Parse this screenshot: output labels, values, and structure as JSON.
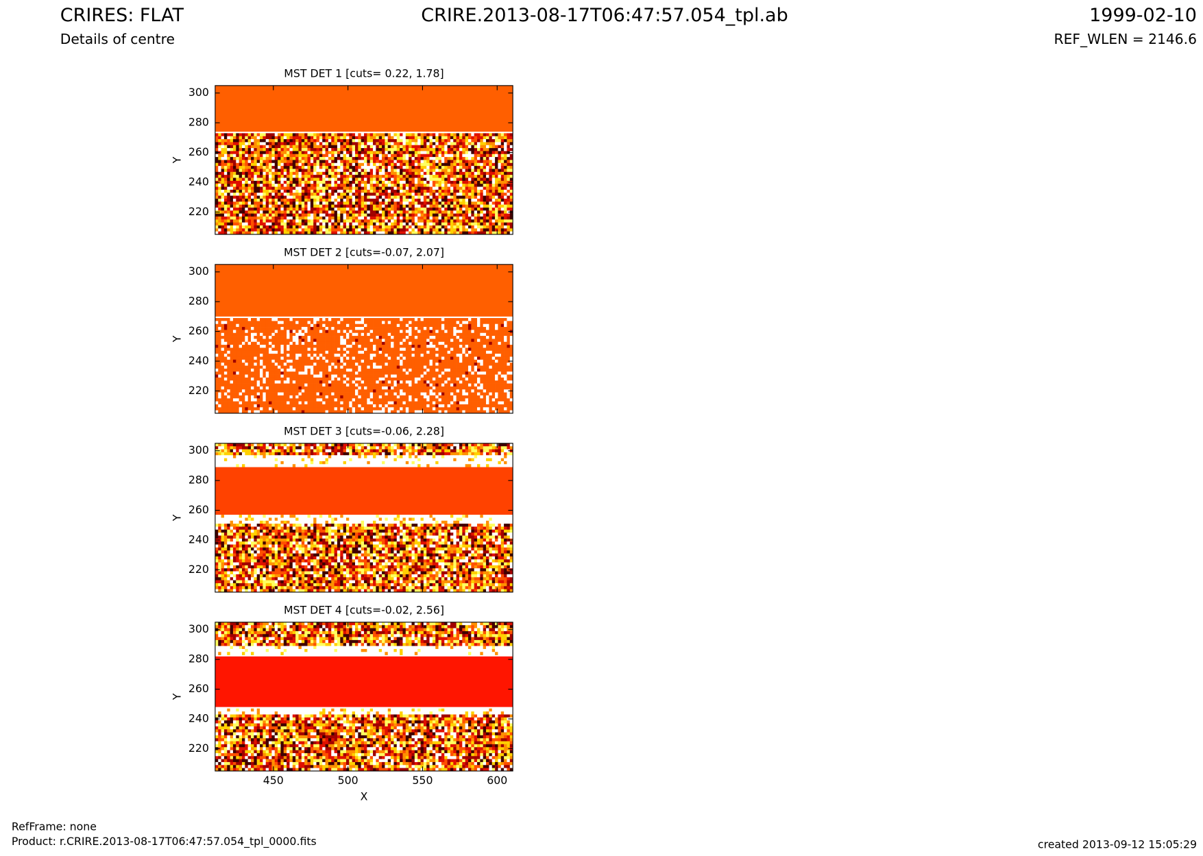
{
  "header": {
    "title": "CRIRES: FLAT",
    "subtitle": "Details of centre",
    "file": "CRIRE.2013-08-17T06:47:57.054_tpl.ab",
    "date": "1999-02-10",
    "ref_wlen": "REF_WLEN = 2146.6"
  },
  "footer": {
    "refframe": "RefFrame: none",
    "product": "Product: r.CRIRE.2013-08-17T06:47:57.054_tpl_0000.fits",
    "created": "created 2013-09-12 15:05:29"
  },
  "chart_data": [
    {
      "type": "image",
      "title": "MST DET 1 [cuts= 0.22, 1.78]",
      "ylabel": "Y",
      "xlim": [
        411,
        610.5
      ],
      "ylim": [
        205,
        305
      ],
      "yticks": [
        220,
        240,
        260,
        280,
        300
      ],
      "band": [
        274,
        305
      ],
      "band_color": "#ff5f00"
    },
    {
      "type": "image",
      "title": "MST DET 2 [cuts=-0.07, 2.07]",
      "ylabel": "Y",
      "xlim": [
        411,
        610.5
      ],
      "ylim": [
        205,
        305
      ],
      "yticks": [
        220,
        240,
        260,
        280,
        300
      ],
      "band": [
        270,
        305
      ],
      "band_color": "#ff5f00"
    },
    {
      "type": "image",
      "title": "MST DET 3 [cuts=-0.06, 2.28]",
      "ylabel": "Y",
      "xlim": [
        411,
        610.5
      ],
      "ylim": [
        205,
        305
      ],
      "yticks": [
        220,
        240,
        260,
        280,
        300
      ],
      "band": [
        257,
        289
      ],
      "band_color": "#ff4200"
    },
    {
      "type": "image",
      "title": "MST DET 4 [cuts=-0.02, 2.56]",
      "ylabel": "Y",
      "xlabel": "X",
      "xlim": [
        411,
        610.5
      ],
      "ylim": [
        205,
        305
      ],
      "yticks": [
        220,
        240,
        260,
        280,
        300
      ],
      "xticks": [
        450,
        500,
        550,
        600
      ],
      "band": [
        248,
        282
      ],
      "band_color": "#ff1500"
    }
  ]
}
